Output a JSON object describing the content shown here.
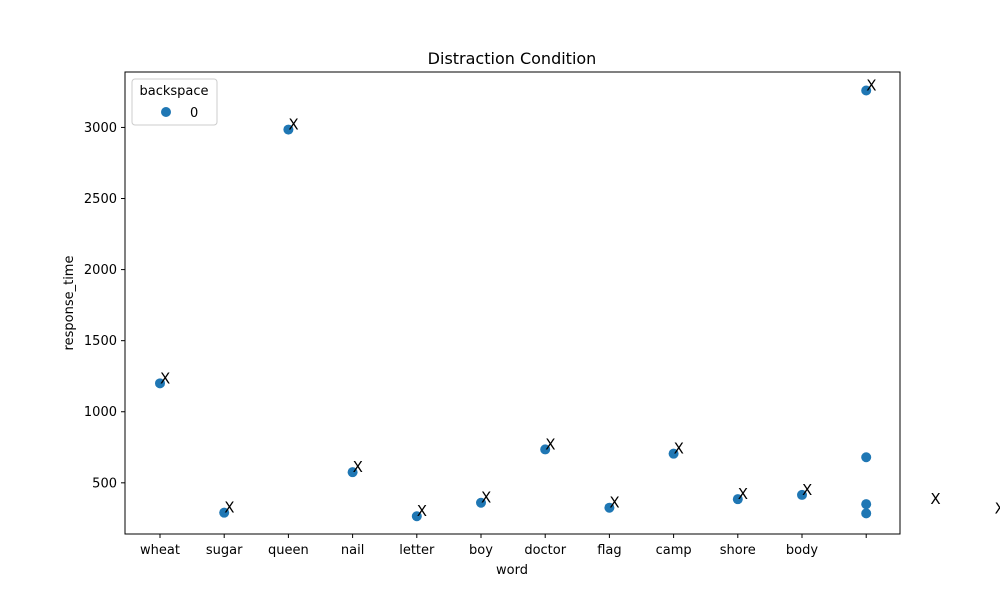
{
  "chart_data": {
    "type": "scatter",
    "title": "Distraction Condition",
    "xlabel": "word",
    "ylabel": "response_time",
    "categories": [
      "wheat",
      "sugar",
      "queen",
      "nail",
      "letter",
      "boy",
      "doctor",
      "flag",
      "camp",
      "shore",
      "body",
      ""
    ],
    "yticks": [
      500,
      1000,
      1500,
      2000,
      2500,
      3000
    ],
    "ylim": [
      140,
      3390
    ],
    "grid": false,
    "legend": {
      "title": "backspace",
      "entries": [
        "0"
      ],
      "placement": "top-left"
    },
    "series": [
      {
        "name": "0",
        "color": "#1f77b4",
        "points": [
          {
            "x": "wheat",
            "y": 1200
          },
          {
            "x": "sugar",
            "y": 290
          },
          {
            "x": "queen",
            "y": 2985
          },
          {
            "x": "nail",
            "y": 575
          },
          {
            "x": "letter",
            "y": 265
          },
          {
            "x": "boy",
            "y": 360
          },
          {
            "x": "doctor",
            "y": 735
          },
          {
            "x": "flag",
            "y": 325
          },
          {
            "x": "camp",
            "y": 705
          },
          {
            "x": "shore",
            "y": 385
          },
          {
            "x": "body",
            "y": 415
          },
          {
            "x": "",
            "y": 3260
          },
          {
            "x": "",
            "y": 680
          },
          {
            "x": "",
            "y": 350
          },
          {
            "x": "",
            "y": 285
          }
        ]
      }
    ],
    "annotations": [
      {
        "text": "X",
        "x": 0,
        "y": 1200
      },
      {
        "text": "X",
        "x": 1,
        "y": 290
      },
      {
        "text": "X",
        "x": 2,
        "y": 2985
      },
      {
        "text": "X",
        "x": 3,
        "y": 575
      },
      {
        "text": "X",
        "x": 4,
        "y": 265
      },
      {
        "text": "X",
        "x": 5,
        "y": 360
      },
      {
        "text": "X",
        "x": 6,
        "y": 735
      },
      {
        "text": "X",
        "x": 7,
        "y": 325
      },
      {
        "text": "X",
        "x": 8,
        "y": 705
      },
      {
        "text": "X",
        "x": 9,
        "y": 385
      },
      {
        "text": "X",
        "x": 10,
        "y": 415
      },
      {
        "text": "X",
        "x": 11,
        "y": 3260
      },
      {
        "text": "X",
        "x": 12,
        "y": 350
      },
      {
        "text": "X",
        "x": 13,
        "y": 285
      }
    ]
  }
}
